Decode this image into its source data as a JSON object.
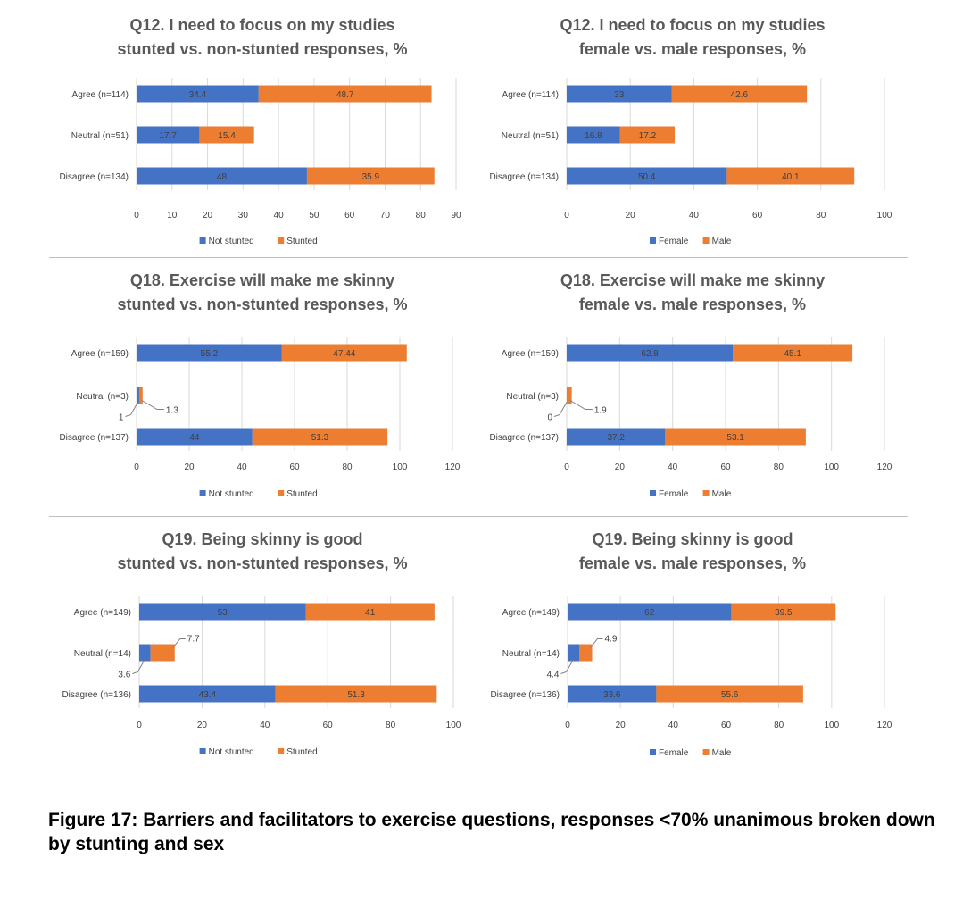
{
  "figure_caption": "Figure 17: Barriers and facilitators to exercise questions, responses <70% unanimous broken down by stunting and sex",
  "colors": {
    "series1": "#4472c4",
    "series2": "#ed7d31",
    "gridline": "#d9d9d9",
    "text": "#404040",
    "title": "#595959"
  },
  "chart_data": [
    {
      "type": "bar",
      "orientation": "horizontal",
      "stacked": true,
      "title": [
        "Q12. I need to focus on my studies",
        "stunted vs. non-stunted responses, %"
      ],
      "categories": [
        "Agree (n=114)",
        "Neutral (n=51)",
        "Disagree (n=134)"
      ],
      "series": [
        {
          "name": "Not stunted",
          "values": [
            34.4,
            17.7,
            48
          ]
        },
        {
          "name": "Stunted",
          "values": [
            48.7,
            15.4,
            35.9
          ]
        }
      ],
      "xlim": [
        0,
        90
      ],
      "xticks": [
        0,
        10,
        20,
        30,
        40,
        50,
        60,
        70,
        80,
        90
      ],
      "legend": "bottom",
      "grid": true
    },
    {
      "type": "bar",
      "orientation": "horizontal",
      "stacked": true,
      "title": [
        "Q12. I need to focus on my studies",
        "female vs. male responses, %"
      ],
      "categories": [
        "Agree (n=114)",
        "Neutral (n=51)",
        "Disagree (n=134)"
      ],
      "series": [
        {
          "name": "Female",
          "values": [
            33,
            16.8,
            50.4
          ]
        },
        {
          "name": "Male",
          "values": [
            42.6,
            17.2,
            40.1
          ]
        }
      ],
      "xlim": [
        0,
        100
      ],
      "xticks": [
        0,
        20,
        40,
        60,
        80,
        100
      ],
      "legend": "bottom",
      "grid": true
    },
    {
      "type": "bar",
      "orientation": "horizontal",
      "stacked": true,
      "title": [
        "Q18. Exercise will make me skinny",
        "stunted vs. non-stunted responses, %"
      ],
      "categories": [
        "Agree (n=159)",
        "Neutral (n=3)",
        "Disagree (n=137)"
      ],
      "series": [
        {
          "name": "Not stunted",
          "values": [
            55.2,
            1,
            44
          ]
        },
        {
          "name": "Stunted",
          "values": [
            47.44,
            1.3,
            51.3
          ]
        }
      ],
      "xlim": [
        0,
        120
      ],
      "xticks": [
        0,
        20,
        40,
        60,
        80,
        100,
        120
      ],
      "legend": "bottom",
      "grid": true
    },
    {
      "type": "bar",
      "orientation": "horizontal",
      "stacked": true,
      "title": [
        "Q18. Exercise will make me skinny",
        "female vs. male responses, %"
      ],
      "categories": [
        "Agree (n=159)",
        "Neutral (n=3)",
        "Disagree (n=137)"
      ],
      "series": [
        {
          "name": "Female",
          "values": [
            62.8,
            0,
            37.2
          ]
        },
        {
          "name": "Male",
          "values": [
            45.1,
            1.9,
            53.1
          ]
        }
      ],
      "xlim": [
        0,
        120
      ],
      "xticks": [
        0,
        20,
        40,
        60,
        80,
        100,
        120
      ],
      "legend": "bottom",
      "grid": true
    },
    {
      "type": "bar",
      "orientation": "horizontal",
      "stacked": true,
      "title": [
        "Q19. Being skinny is good",
        "stunted vs. non-stunted responses, %"
      ],
      "categories": [
        "Agree (n=149)",
        "Neutral (n=14)",
        "Disagree (n=136)"
      ],
      "series": [
        {
          "name": "Not stunted",
          "values": [
            53,
            3.6,
            43.4
          ]
        },
        {
          "name": "Stunted",
          "values": [
            41,
            7.7,
            51.3
          ]
        }
      ],
      "xlim": [
        0,
        100
      ],
      "xticks": [
        0,
        20,
        40,
        60,
        80,
        100
      ],
      "legend": "bottom",
      "grid": true
    },
    {
      "type": "bar",
      "orientation": "horizontal",
      "stacked": true,
      "title": [
        "Q19. Being skinny is good",
        "female vs. male responses, %"
      ],
      "categories": [
        "Agree (n=149)",
        "Neutral (n=14)",
        "Disagree (n=136)"
      ],
      "series": [
        {
          "name": "Female",
          "values": [
            62,
            4.4,
            33.6
          ]
        },
        {
          "name": "Male",
          "values": [
            39.5,
            4.9,
            55.6
          ]
        }
      ],
      "xlim": [
        0,
        120
      ],
      "xticks": [
        0,
        20,
        40,
        60,
        80,
        100,
        120
      ],
      "legend": "bottom",
      "grid": true
    }
  ]
}
